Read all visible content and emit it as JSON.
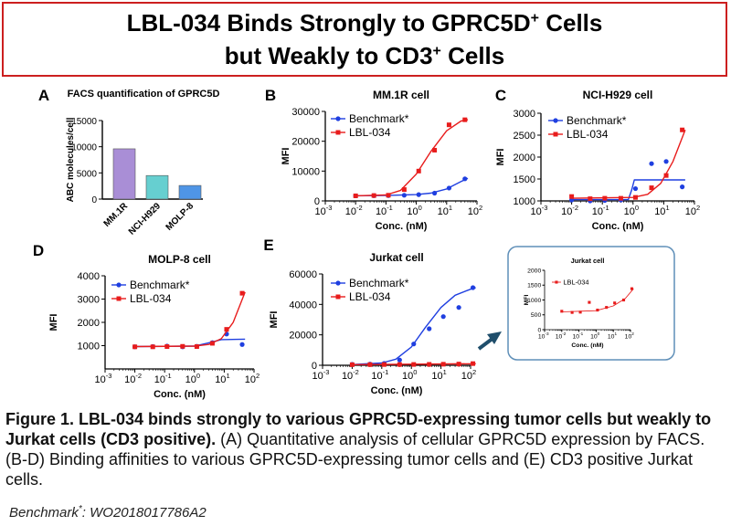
{
  "header": {
    "line1": "LBL-034 Binds Strongly to GPRC5D",
    "line1_sup": "+",
    "line1_tail": " Cells",
    "line2": "but Weakly to CD3",
    "line2_sup": "+",
    "line2_tail": " Cells"
  },
  "colors": {
    "benchmark": "#1f3fe0",
    "lbl034": "#e81c1c",
    "bar_mm1r": "#a98ed6",
    "bar_nci": "#66cfd0",
    "bar_molp": "#4f95e6",
    "title_border": "#cc1f1f",
    "arrow": "#1f4e6b",
    "inset_border": "#5f8fb8"
  },
  "chart_data": [
    {
      "panel": "A",
      "type": "bar",
      "title": "FACS quantification of GPRC5D",
      "categories": [
        "MM.1R",
        "NCI-H929",
        "MOLP-8"
      ],
      "values": [
        9600,
        4500,
        2600
      ],
      "ylabel": "ABC molecules/cell",
      "ylim": [
        0,
        15000
      ],
      "yticks": [
        "0",
        "5000",
        "10000",
        "15000"
      ]
    },
    {
      "panel": "B",
      "type": "scatter",
      "title": "MM.1R cell",
      "xlabel": "Conc. (nM)",
      "ylabel": "MFI",
      "ylim": [
        0,
        30000
      ],
      "yticks": [
        "0",
        "10000",
        "20000",
        "30000"
      ],
      "legend": [
        "Benchmark*",
        "LBL-034"
      ],
      "series": [
        {
          "name": "Benchmark*",
          "x": [
            0.01,
            0.04,
            0.12,
            0.4,
            1.2,
            4,
            12,
            40
          ],
          "y": [
            1700,
            1750,
            1800,
            1900,
            2100,
            2600,
            4300,
            7400
          ],
          "fit": [
            [
              0.01,
              1700
            ],
            [
              0.1,
              1800
            ],
            [
              1,
              2100
            ],
            [
              3,
              2600
            ],
            [
              10,
              4000
            ],
            [
              30,
              6500
            ],
            [
              50,
              7600
            ]
          ]
        },
        {
          "name": "LBL-034",
          "x": [
            0.01,
            0.04,
            0.12,
            0.4,
            1.2,
            4,
            12,
            40
          ],
          "y": [
            1700,
            1800,
            1900,
            3800,
            10000,
            17000,
            25500,
            27200
          ],
          "fit": [
            [
              0.01,
              1700
            ],
            [
              0.1,
              2000
            ],
            [
              0.3,
              3500
            ],
            [
              1,
              9000
            ],
            [
              3,
              16500
            ],
            [
              10,
              23500
            ],
            [
              30,
              26800
            ],
            [
              50,
              27200
            ]
          ]
        }
      ]
    },
    {
      "panel": "C",
      "type": "scatter",
      "title": "NCI-H929 cell",
      "xlabel": "Conc. (nM)",
      "ylabel": "MFI",
      "ylim": [
        1000,
        3000
      ],
      "yticks": [
        "1000",
        "1500",
        "2000",
        "2500",
        "3000"
      ],
      "legend": [
        "Benchmark*",
        "LBL-034"
      ],
      "series": [
        {
          "name": "Benchmark*",
          "x": [
            0.01,
            0.04,
            0.12,
            0.4,
            1.2,
            4,
            12,
            40
          ],
          "y": [
            1020,
            1000,
            1010,
            1020,
            1280,
            1850,
            1900,
            1320
          ],
          "fit": [
            [
              0.01,
              1030
            ],
            [
              0.7,
              1030
            ],
            [
              0.9,
              1250
            ],
            [
              1.1,
              1480
            ],
            [
              50,
              1480
            ]
          ]
        },
        {
          "name": "LBL-034",
          "x": [
            0.01,
            0.04,
            0.12,
            0.4,
            1.2,
            4,
            12,
            40
          ],
          "y": [
            1100,
            1050,
            1060,
            1060,
            1080,
            1300,
            1580,
            2620
          ],
          "fit": [
            [
              0.01,
              1060
            ],
            [
              1,
              1080
            ],
            [
              3,
              1150
            ],
            [
              8,
              1400
            ],
            [
              20,
              1900
            ],
            [
              50,
              2620
            ]
          ]
        }
      ]
    },
    {
      "panel": "D",
      "type": "scatter",
      "title": "MOLP-8 cell",
      "xlabel": "Conc. (nM)",
      "ylabel": "MFI",
      "ylim": [
        0,
        4000
      ],
      "yticks": [
        "1000",
        "2000",
        "3000",
        "4000"
      ],
      "legend": [
        "Benchmark*",
        "LBL-034"
      ],
      "series": [
        {
          "name": "Benchmark*",
          "x": [
            0.01,
            0.04,
            0.12,
            0.4,
            1.2,
            4,
            12,
            40
          ],
          "y": [
            950,
            960,
            980,
            950,
            970,
            1130,
            1500,
            1050
          ],
          "fit": [
            [
              0.01,
              960
            ],
            [
              1,
              980
            ],
            [
              3,
              1120
            ],
            [
              8,
              1260
            ],
            [
              50,
              1280
            ]
          ]
        },
        {
          "name": "LBL-034",
          "x": [
            0.01,
            0.04,
            0.12,
            0.4,
            1.2,
            4,
            12,
            40
          ],
          "y": [
            950,
            950,
            960,
            970,
            960,
            1100,
            1700,
            3250
          ],
          "fit": [
            [
              0.01,
              960
            ],
            [
              1,
              980
            ],
            [
              3,
              1050
            ],
            [
              8,
              1300
            ],
            [
              20,
              2000
            ],
            [
              50,
              3300
            ]
          ]
        }
      ]
    },
    {
      "panel": "E",
      "type": "scatter",
      "title": "Jurkat cell",
      "xlabel": "Conc. (nM)",
      "ylabel": "MFI",
      "ylim": [
        0,
        60000
      ],
      "yticks": [
        "0",
        "20000",
        "40000",
        "60000"
      ],
      "legend": [
        "Benchmark*",
        "LBL-034"
      ],
      "series": [
        {
          "name": "Benchmark*",
          "x": [
            0.01,
            0.04,
            0.12,
            0.4,
            1.2,
            4,
            12,
            40,
            120
          ],
          "y": [
            600,
            800,
            1200,
            3500,
            14000,
            24000,
            32000,
            38000,
            51000
          ],
          "fit": [
            [
              0.01,
              500
            ],
            [
              0.1,
              1500
            ],
            [
              0.3,
              4000
            ],
            [
              1,
              12000
            ],
            [
              3,
              25000
            ],
            [
              10,
              38000
            ],
            [
              30,
              46000
            ],
            [
              100,
              50000
            ],
            [
              150,
              51000
            ]
          ]
        },
        {
          "name": "LBL-034",
          "x": [
            0.01,
            0.04,
            0.12,
            0.4,
            1.2,
            4,
            12,
            40,
            120
          ],
          "y": [
            400,
            450,
            500,
            500,
            550,
            600,
            700,
            800,
            1100
          ],
          "fit": [
            [
              0.01,
              400
            ],
            [
              150,
              1000
            ]
          ]
        }
      ]
    },
    {
      "panel": "E-inset",
      "type": "scatter",
      "title": "Jurkat cell",
      "xlabel": "Conc. (nM)",
      "ylabel": "MFI",
      "ylim": [
        0,
        2000
      ],
      "yticks": [
        "0",
        "500",
        "1000",
        "1500",
        "2000"
      ],
      "legend": [
        "LBL-034"
      ],
      "series": [
        {
          "name": "LBL-034",
          "x": [
            0.01,
            0.04,
            0.12,
            0.4,
            1.2,
            4,
            12,
            40,
            120
          ],
          "y": [
            620,
            580,
            590,
            920,
            660,
            750,
            900,
            1000,
            1380
          ],
          "fit": [
            [
              0.01,
              600
            ],
            [
              1,
              640
            ],
            [
              10,
              800
            ],
            [
              50,
              1050
            ],
            [
              150,
              1380
            ]
          ]
        }
      ]
    }
  ],
  "caption": {
    "bold": "Figure 1. LBL-034 binds strongly to various GPRC5D-expressing tumor cells but weakly to Jurkat cells (CD3 positive).",
    "normal": " (A) Quantitative analysis of cellular GPRC5D expression by FACS. (B-D) Binding affinities to various GPRC5D-expressing tumor cells and (E) CD3 positive Jurkat cells."
  },
  "footnote": {
    "label": "Benchmark",
    "sup": "*",
    "text": ": WO2018017786A2"
  },
  "x_ticks_log": [
    "-3",
    "-2",
    "-1",
    "0",
    "1",
    "2"
  ]
}
